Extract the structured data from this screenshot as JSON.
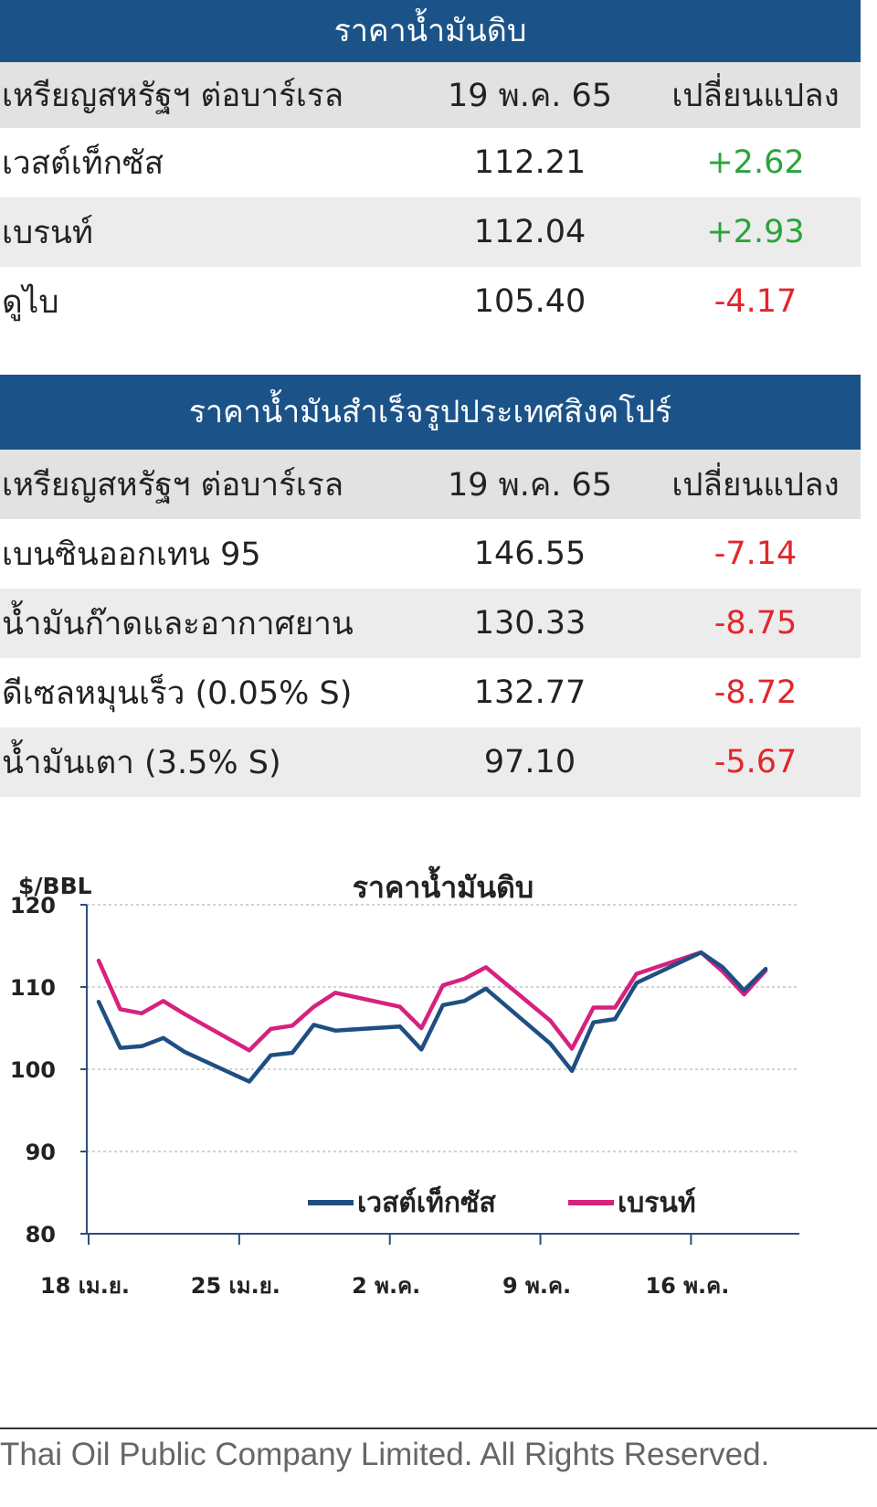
{
  "crude": {
    "title": "ราคาน้ำมันดิบ",
    "header": {
      "label": "เหรียญสหรัฐฯ ต่อบาร์เรล",
      "date": "19 พ.ค. 65",
      "change": "เปลี่ยนแปลง"
    },
    "rows": [
      {
        "name": "เวสต์เท็กซัส",
        "price": "112.21",
        "change": "+2.62",
        "direction": "up"
      },
      {
        "name": "เบรนท์",
        "price": "112.04",
        "change": "+2.93",
        "direction": "up"
      },
      {
        "name": "ดูไบ",
        "price": "105.40",
        "change": "-4.17",
        "direction": "down"
      }
    ]
  },
  "refined": {
    "title": "ราคาน้ำมันสำเร็จรูปประเทศสิงคโปร์",
    "header": {
      "label": "เหรียญสหรัฐฯ ต่อบาร์เรล",
      "date": "19 พ.ค. 65",
      "change": "เปลี่ยนแปลง"
    },
    "rows": [
      {
        "name": "เบนซินออกเทน 95",
        "price": "146.55",
        "change": "-7.14",
        "direction": "down"
      },
      {
        "name": "น้ำมันก๊าดและอากาศยาน",
        "price": "130.33",
        "change": "-8.75",
        "direction": "down"
      },
      {
        "name": "ดีเซลหมุนเร็ว (0.05% S)",
        "price": "132.77",
        "change": "-8.72",
        "direction": "down"
      },
      {
        "name": "น้ำมันเตา (3.5% S)",
        "price": "97.10",
        "change": "-5.67",
        "direction": "down"
      }
    ]
  },
  "colors": {
    "header_bg": "#1b5389",
    "positive": "#2aa33b",
    "negative": "#e1262c",
    "wti": "#1f4f82",
    "brent": "#d6217f"
  },
  "chart_data": {
    "type": "line",
    "title": "ราคาน้ำมันดิบ",
    "ylabel": "$/BBL",
    "ylim": [
      80,
      120
    ],
    "yticks": [
      80,
      90,
      100,
      110,
      120
    ],
    "x_tick_labels": [
      "18 เม.ย.",
      "25 เม.ย.",
      "2 พ.ค.",
      "9 พ.ค.",
      "16 พ.ค."
    ],
    "x": [
      "2022-04-18",
      "2022-04-19",
      "2022-04-20",
      "2022-04-21",
      "2022-04-22",
      "2022-04-25",
      "2022-04-26",
      "2022-04-27",
      "2022-04-28",
      "2022-04-29",
      "2022-05-02",
      "2022-05-03",
      "2022-05-04",
      "2022-05-05",
      "2022-05-06",
      "2022-05-09",
      "2022-05-10",
      "2022-05-11",
      "2022-05-12",
      "2022-05-13",
      "2022-05-16",
      "2022-05-17",
      "2022-05-18",
      "2022-05-19"
    ],
    "series": [
      {
        "name": "เวสต์เท็กซัส",
        "color": "#1f4f82",
        "values": [
          108.2,
          102.6,
          102.8,
          103.8,
          102.1,
          98.5,
          101.7,
          102.0,
          105.4,
          104.7,
          105.2,
          102.4,
          107.8,
          108.3,
          109.8,
          103.1,
          99.8,
          105.7,
          106.1,
          110.5,
          114.2,
          112.4,
          109.6,
          112.2
        ]
      },
      {
        "name": "เบรนท์",
        "color": "#d6217f",
        "values": [
          113.2,
          107.3,
          106.8,
          108.3,
          106.7,
          102.3,
          104.9,
          105.3,
          107.6,
          109.3,
          107.6,
          105.0,
          110.2,
          111.0,
          112.4,
          105.9,
          102.5,
          107.5,
          107.5,
          111.6,
          114.2,
          111.9,
          109.1,
          112.0
        ]
      }
    ],
    "legend_position": "bottom-center"
  },
  "footer": "Thai Oil Public Company Limited. All Rights Reserved."
}
